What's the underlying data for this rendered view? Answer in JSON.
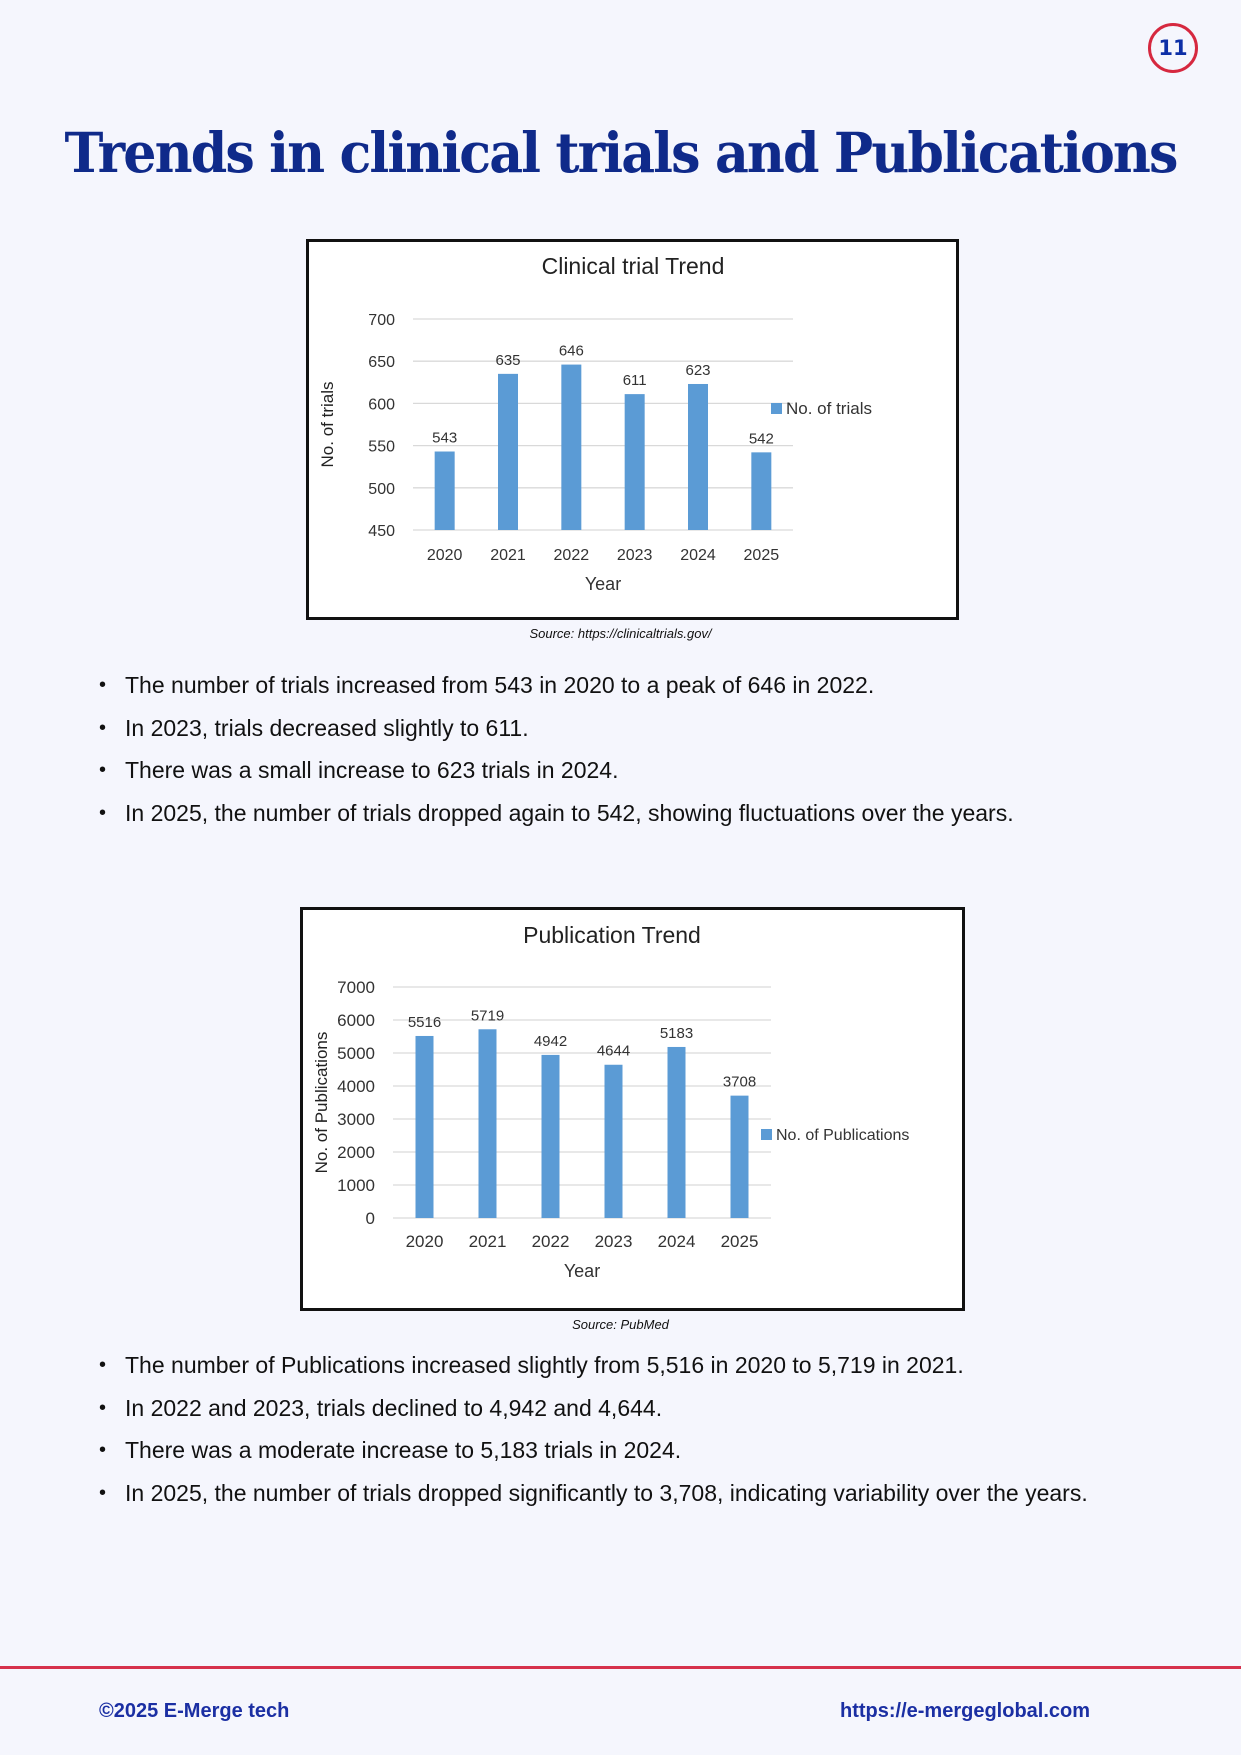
{
  "page": {
    "number": "11",
    "title": "Trends in clinical trials and Publications"
  },
  "colors": {
    "title": "#0f2a8a",
    "bar": "#5b9bd5",
    "accent_red": "#d6283f",
    "footer_text": "#1b2fa3"
  },
  "chart_data": [
    {
      "type": "bar",
      "title": "Clinical trial Trend",
      "xlabel": "Year",
      "ylabel": "No. of trials",
      "categories": [
        "2020",
        "2021",
        "2022",
        "2023",
        "2024",
        "2025"
      ],
      "series": [
        {
          "name": "No. of trials",
          "values": [
            543,
            635,
            646,
            611,
            623,
            542
          ]
        }
      ],
      "ylim": [
        450,
        700
      ],
      "yticks": [
        450,
        500,
        550,
        600,
        650,
        700
      ],
      "grid": true,
      "legend_position": "right",
      "data_labels": true
    },
    {
      "type": "bar",
      "title": "Publication Trend",
      "xlabel": "Year",
      "ylabel": "No. of Publications",
      "categories": [
        "2020",
        "2021",
        "2022",
        "2023",
        "2024",
        "2025"
      ],
      "series": [
        {
          "name": "No. of Publications",
          "values": [
            5516,
            5719,
            4942,
            4644,
            5183,
            3708
          ]
        }
      ],
      "ylim": [
        0,
        7000
      ],
      "yticks": [
        0,
        1000,
        2000,
        3000,
        4000,
        5000,
        6000,
        7000
      ],
      "grid": true,
      "legend_position": "right",
      "data_labels": true
    }
  ],
  "sections": {
    "trials": {
      "source": "Source: https://clinicaltrials.gov/",
      "bullets": [
        "The number of trials increased from 543 in 2020 to a peak of 646 in 2022.",
        "In 2023, trials decreased slightly to 611.",
        "There was a small increase to 623 trials in 2024.",
        "In 2025, the number of trials dropped again to 542, showing fluctuations over the years."
      ]
    },
    "publications": {
      "source": "Source: PubMed",
      "bullets": [
        "The number of Publications increased slightly from 5,516 in 2020 to 5,719 in 2021.",
        "In 2022 and 2023, trials declined to 4,942 and 4,644.",
        "There was a moderate increase to 5,183 trials in 2024.",
        "In 2025, the number of trials dropped significantly to 3,708, indicating variability over the years."
      ]
    }
  },
  "footer": {
    "copyright": "©2025 E-Merge tech",
    "url": "https://e-mergeglobal.com"
  }
}
